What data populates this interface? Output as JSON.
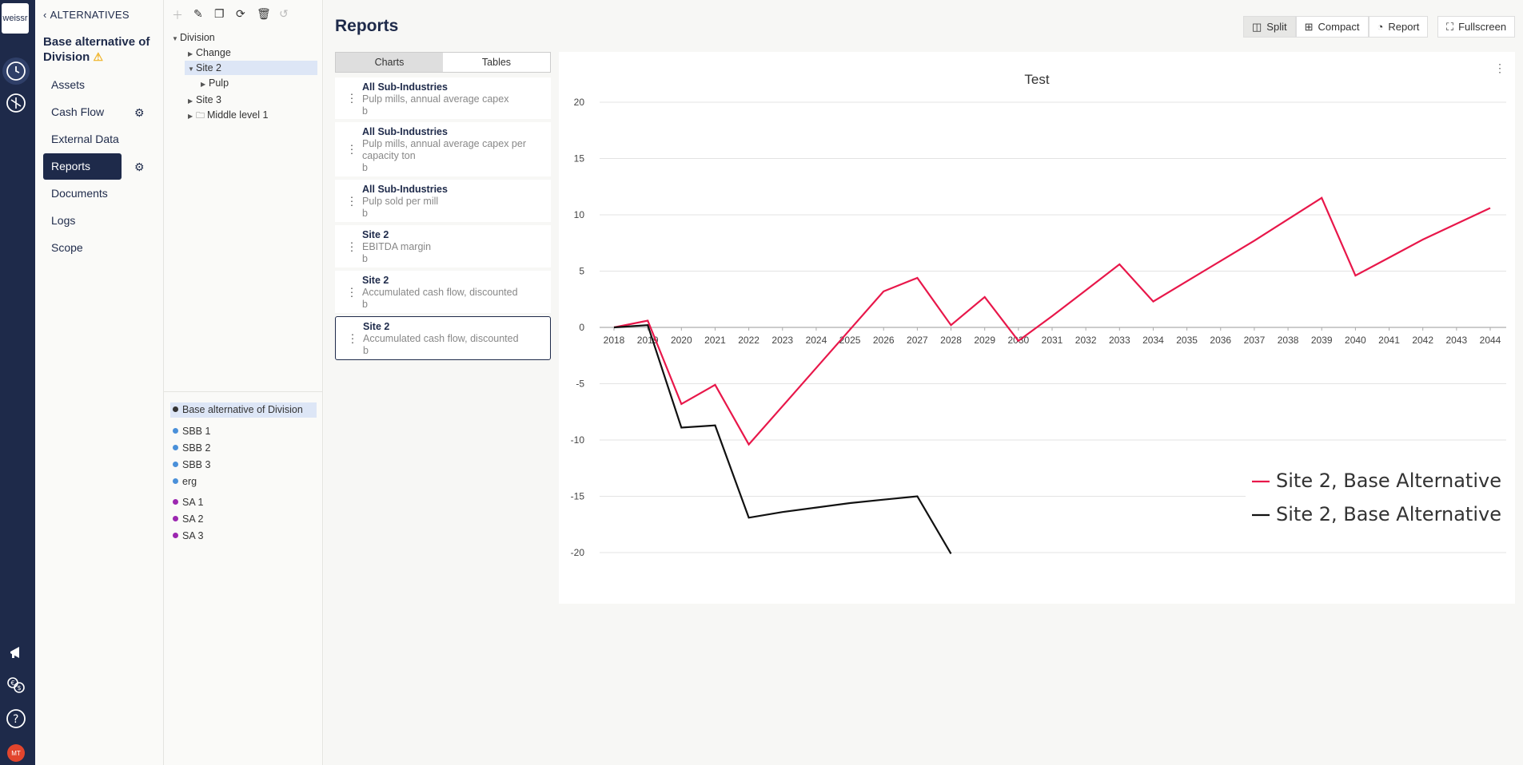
{
  "app": {
    "logo_text": "weissr"
  },
  "rail": {
    "icons": [
      "history-icon",
      "dashboard-icon",
      "announce-icon",
      "currency-exchange-icon",
      "help-icon"
    ],
    "avatar": "MT"
  },
  "nav": {
    "back_label": "ALTERNATIVES",
    "title": "Base alternative of Division",
    "items": [
      {
        "label": "Assets"
      },
      {
        "label": "Cash Flow"
      },
      {
        "label": "External Data"
      },
      {
        "label": "Reports"
      },
      {
        "label": "Documents"
      },
      {
        "label": "Logs"
      },
      {
        "label": "Scope"
      }
    ]
  },
  "tree": {
    "nodes": [
      {
        "label": "Division"
      },
      {
        "label": "Change"
      },
      {
        "label": "Site 2"
      },
      {
        "label": "Pulp"
      },
      {
        "label": "Site 3"
      },
      {
        "label": "Middle level 1"
      }
    ]
  },
  "scenarios": {
    "base": "Base alternative of Division",
    "blue": [
      "SBB 1",
      "SBB 2",
      "SBB 3",
      "erg"
    ],
    "purple": [
      "SA 1",
      "SA 2",
      "SA 3"
    ],
    "colors": {
      "base": "#333333",
      "blue": "#4a90d9",
      "purple": "#9c27b0"
    }
  },
  "main": {
    "title": "Reports",
    "views": [
      "Split",
      "Compact",
      "Report"
    ],
    "fullscreen_label": "Fullscreen",
    "tabs": [
      "Charts",
      "Tables"
    ],
    "reports": [
      {
        "title": "All Sub-Industries",
        "subtitle": "Pulp mills, annual average capex",
        "tag": "b"
      },
      {
        "title": "All Sub-Industries",
        "subtitle": "Pulp mills, annual average capex per capacity ton",
        "tag": "b"
      },
      {
        "title": "All Sub-Industries",
        "subtitle": "Pulp sold per mill",
        "tag": "b"
      },
      {
        "title": "Site 2",
        "subtitle": "EBITDA margin",
        "tag": "b"
      },
      {
        "title": "Site 2",
        "subtitle": "Accumulated cash flow, discounted",
        "tag": "b"
      },
      {
        "title": "Site 2",
        "subtitle": "Accumulated cash flow, discounted",
        "tag": "b"
      }
    ]
  },
  "chart_data": {
    "type": "line",
    "title": "Test",
    "x": [
      2018,
      2019,
      2020,
      2021,
      2022,
      2023,
      2024,
      2025,
      2026,
      2027,
      2028,
      2029,
      2030,
      2031,
      2032,
      2033,
      2034,
      2035,
      2036,
      2037,
      2038,
      2039,
      2040,
      2041,
      2042,
      2043,
      2044
    ],
    "ylim": [
      -20,
      20
    ],
    "yticks": [
      20,
      15,
      10,
      5,
      0,
      -5,
      -10,
      -15,
      -20
    ],
    "grid": true,
    "legend_position": "bottom-right",
    "series": [
      {
        "name": "Site 2, Base Alternative",
        "color": "#e8174a",
        "values": [
          0,
          0.6,
          -6.8,
          -5.1,
          -10.4,
          -7.0,
          -3.6,
          -0.2,
          3.2,
          4.4,
          0.2,
          2.7,
          -1.2,
          1.0,
          3.3,
          5.6,
          2.3,
          4.1,
          5.9,
          7.7,
          9.6,
          11.5,
          4.6,
          6.2,
          7.8,
          9.2,
          10.6
        ]
      },
      {
        "name": "Site 2, Base Alternative",
        "color": "#111111",
        "values": [
          0,
          0.2,
          -8.9,
          -8.7,
          -16.9,
          -16.4,
          -16.0,
          -15.6,
          -15.3,
          -15.0,
          -20.1,
          null,
          null,
          null,
          null,
          null,
          null,
          null,
          null,
          null,
          null,
          null,
          null,
          null,
          null,
          null,
          null
        ]
      }
    ]
  }
}
